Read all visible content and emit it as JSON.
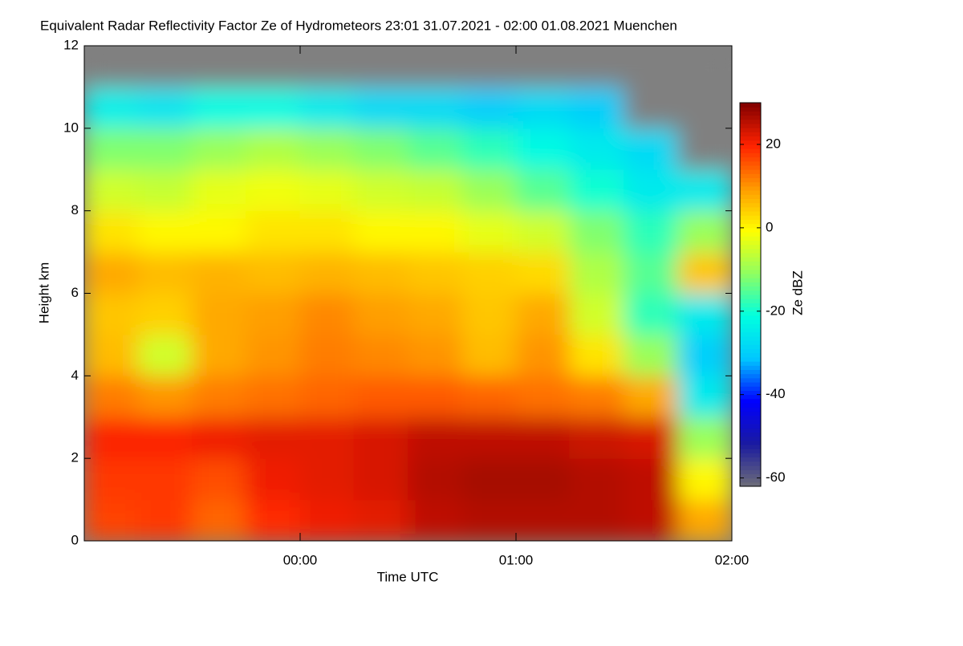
{
  "chart_data": {
    "type": "heatmap",
    "title": "Equivalent Radar Reflectivity Factor Ze of Hydrometeors   23:01 31.07.2021 - 02:00 01.08.2021 Muenchen",
    "x_label": "Time UTC",
    "y_label": "Height km",
    "colorbar_label": "Ze dBZ",
    "xlim": [
      -1,
      2
    ],
    "xticks": [
      {
        "value": 0,
        "label": "00:00"
      },
      {
        "value": 1,
        "label": "01:00"
      },
      {
        "value": 2,
        "label": "02:00"
      }
    ],
    "ylim": [
      0,
      12
    ],
    "yticks": [
      0,
      2,
      4,
      6,
      8,
      10,
      12
    ],
    "zlim": [
      -62,
      30
    ],
    "zticks": [
      -60,
      -40,
      -20,
      0,
      20
    ],
    "colormap": [
      "#6e6e78",
      "#1a1aa0",
      "#0000ff",
      "#00c8ff",
      "#00ffe0",
      "#90ff60",
      "#ffff00",
      "#ff9900",
      "#ff2200",
      "#800000"
    ],
    "missing_color": "#808080",
    "xbins": [
      -1,
      -0.75,
      -0.5,
      -0.25,
      0,
      0.25,
      0.5,
      0.75,
      1,
      1.25,
      1.5,
      1.75,
      2
    ],
    "ybins": [
      0,
      1,
      2,
      3,
      4,
      5,
      6,
      7,
      8,
      9,
      10,
      11,
      12
    ],
    "values": [
      [
        17,
        18,
        14,
        19,
        21,
        22,
        25,
        26,
        26,
        26,
        25,
        8
      ],
      [
        18,
        18,
        16,
        21,
        22,
        23,
        26,
        27,
        27,
        26,
        25,
        0
      ],
      [
        20,
        20,
        21,
        22,
        22,
        23,
        25,
        25,
        25,
        24,
        23,
        -10
      ],
      [
        12,
        10,
        12,
        13,
        14,
        15,
        15,
        14,
        13,
        12,
        8,
        -25
      ],
      [
        6,
        -5,
        8,
        10,
        12,
        11,
        10,
        6,
        10,
        2,
        -10,
        -30
      ],
      [
        5,
        4,
        8,
        9,
        11,
        9,
        8,
        5,
        8,
        -5,
        -18,
        -25
      ],
      [
        8,
        6,
        7,
        6,
        7,
        6,
        5,
        4,
        3,
        -8,
        -15,
        5
      ],
      [
        2,
        0,
        0,
        2,
        2,
        0,
        0,
        -3,
        -5,
        -12,
        -18,
        -10
      ],
      [
        -5,
        -6,
        -3,
        -2,
        -3,
        -5,
        -6,
        -10,
        -15,
        -20,
        -25,
        -25
      ],
      [
        -12,
        -12,
        -10,
        -8,
        -10,
        -12,
        -15,
        -18,
        -22,
        -25,
        -28,
        null
      ],
      [
        -24,
        -26,
        -22,
        -22,
        -25,
        -28,
        -28,
        -30,
        -28,
        -30,
        null,
        null
      ],
      [
        null,
        null,
        null,
        null,
        null,
        null,
        null,
        null,
        null,
        null,
        null,
        null
      ]
    ]
  }
}
